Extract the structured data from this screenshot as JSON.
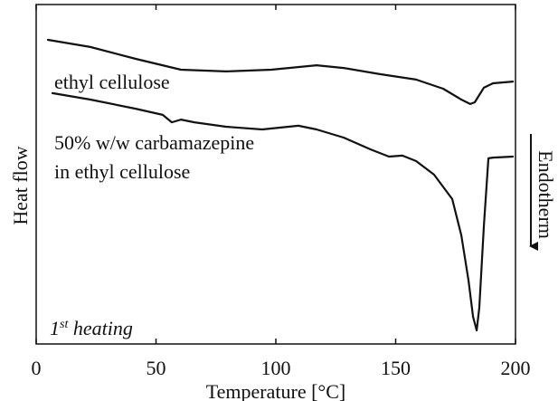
{
  "chart_data": {
    "type": "line",
    "xlabel": "Temperature [°C]",
    "ylabel": "Heat flow",
    "xlim": [
      0,
      200
    ],
    "xticks": [
      0,
      50,
      100,
      150,
      200
    ],
    "ylim": [
      0,
      100
    ],
    "annotations": {
      "curve1": "ethyl cellulose",
      "curve2_line1": "50% w/w carbamazepine",
      "curve2_line2": "in ethyl cellulose",
      "heating_number": "1",
      "heating_superscript": "st",
      "heating_text": " heating",
      "direction": "Endotherm"
    },
    "series": [
      {
        "name": "ethyl cellulose",
        "color": "#111111",
        "x": [
          4.9,
          22.6,
          41.5,
          60.4,
          79.2,
          98.1,
          117,
          128.3,
          143.4,
          158.5,
          169.8,
          177.4,
          181.1,
          183,
          186.8,
          190.6,
          198.9
        ],
        "values": [
          89.6,
          87.5,
          84.0,
          80.8,
          80.3,
          80.8,
          82.1,
          81.3,
          79.5,
          77.9,
          75.2,
          72,
          70.7,
          71.2,
          75.5,
          76.8,
          77.3
        ]
      },
      {
        "name": "50% w/w carbamazepine in ethyl cellulose",
        "color": "#111111",
        "x": [
          6.8,
          22.6,
          41.5,
          52.8,
          56.6,
          60.4,
          66,
          79.2,
          94.3,
          109.4,
          117,
          128.3,
          139.6,
          147.2,
          152.8,
          158.5,
          166,
          173.6,
          177.4,
          180.4,
          182.3,
          183.8,
          184.9,
          186.8,
          188.7,
          190.6,
          198.9
        ],
        "values": [
          73.9,
          72,
          69.3,
          67.5,
          65.3,
          66.1,
          65.3,
          64,
          63.2,
          64.3,
          63.2,
          60.8,
          57.3,
          55.2,
          55.5,
          53.9,
          49.9,
          42.7,
          32,
          18.7,
          8,
          4,
          10.7,
          34.7,
          54.7,
          54.9,
          55.2
        ]
      }
    ]
  }
}
